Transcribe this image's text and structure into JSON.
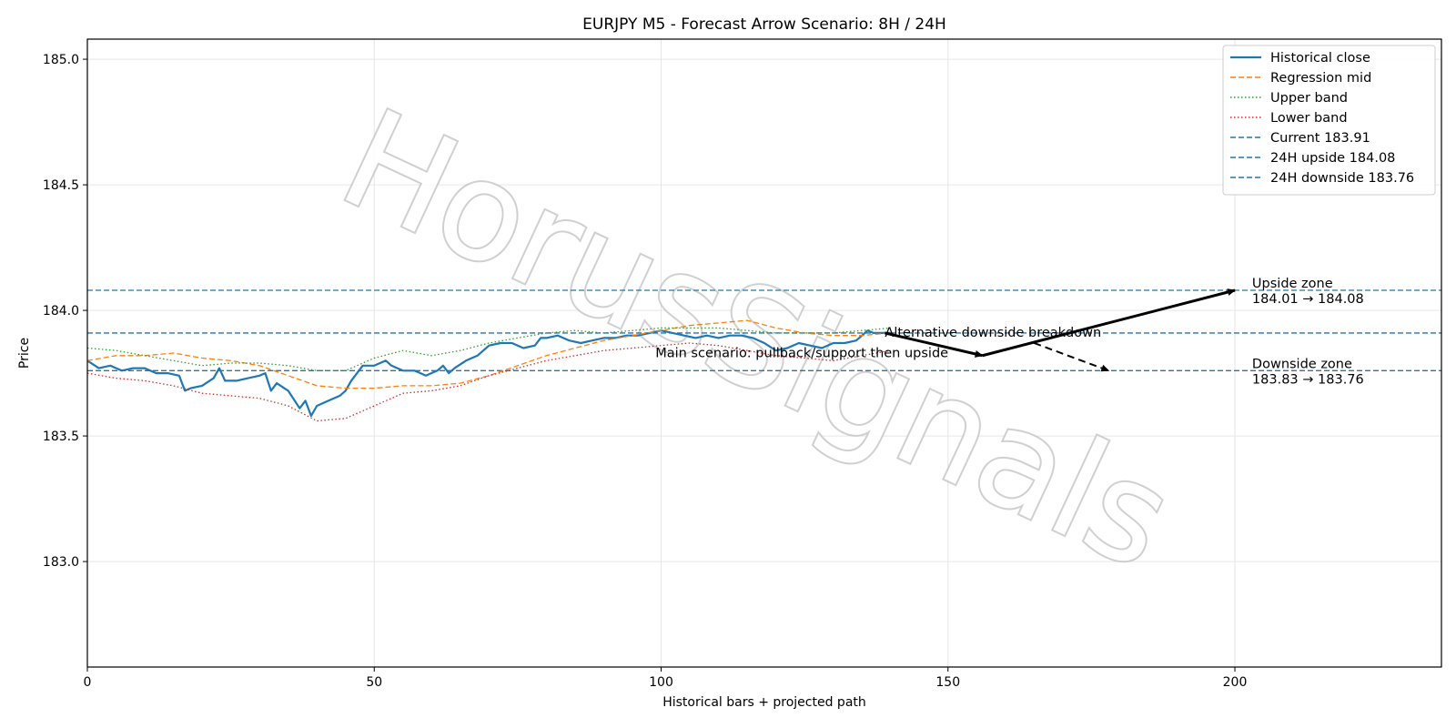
{
  "chart_data": {
    "type": "line",
    "title": "EURJPY M5 - Forecast Arrow Scenario: 8H / 24H",
    "xlabel": "Historical bars + projected path",
    "ylabel": "Price",
    "xlim": [
      0,
      236
    ],
    "ylim": [
      182.58,
      185.08
    ],
    "xticks": [
      0,
      50,
      100,
      150,
      200
    ],
    "yticks": [
      183.0,
      183.5,
      184.0,
      184.5,
      185.0
    ],
    "xtick_labels": [
      "0",
      "50",
      "100",
      "150",
      "200"
    ],
    "ytick_labels": [
      "183.0",
      "183.5",
      "184.0",
      "184.5",
      "185.0"
    ],
    "grid": true,
    "legend_position": "top-right",
    "watermark": "HorusSignals",
    "series": [
      {
        "name": "Historical close",
        "color": "#1f77b4",
        "style": "solid",
        "x": [
          0,
          2,
          4,
          6,
          8,
          10,
          12,
          14,
          16,
          17,
          18,
          20,
          22,
          23,
          24,
          26,
          28,
          30,
          31,
          32,
          33,
          35,
          37,
          38,
          39,
          40,
          42,
          44,
          45,
          46,
          47,
          48,
          50,
          52,
          53,
          55,
          57,
          59,
          61,
          62,
          63,
          64,
          66,
          68,
          70,
          72,
          74,
          76,
          78,
          79,
          80,
          82,
          84,
          86,
          88,
          90,
          92,
          94,
          96,
          98,
          100,
          102,
          104,
          106,
          108,
          110,
          112,
          114,
          116,
          118,
          120,
          122,
          124,
          126,
          128,
          130,
          132,
          134,
          136,
          137,
          138,
          140
        ],
        "y": [
          183.8,
          183.77,
          183.78,
          183.76,
          183.77,
          183.77,
          183.75,
          183.75,
          183.74,
          183.68,
          183.69,
          183.7,
          183.73,
          183.77,
          183.72,
          183.72,
          183.73,
          183.74,
          183.75,
          183.68,
          183.71,
          183.68,
          183.61,
          183.64,
          183.58,
          183.62,
          183.64,
          183.66,
          183.68,
          183.72,
          183.75,
          183.78,
          183.78,
          183.8,
          183.78,
          183.76,
          183.76,
          183.74,
          183.76,
          183.78,
          183.75,
          183.77,
          183.8,
          183.82,
          183.86,
          183.87,
          183.87,
          183.85,
          183.86,
          183.89,
          183.89,
          183.9,
          183.88,
          183.87,
          183.88,
          183.89,
          183.89,
          183.9,
          183.9,
          183.91,
          183.92,
          183.91,
          183.9,
          183.89,
          183.9,
          183.89,
          183.9,
          183.9,
          183.89,
          183.87,
          183.84,
          183.85,
          183.87,
          183.86,
          183.85,
          183.87,
          183.87,
          183.88,
          183.92,
          183.91,
          183.91,
          183.91
        ]
      },
      {
        "name": "Regression mid",
        "color": "#ff7f0e",
        "style": "dashed",
        "x": [
          0,
          5,
          10,
          15,
          20,
          25,
          30,
          35,
          40,
          45,
          50,
          55,
          60,
          65,
          70,
          75,
          80,
          85,
          90,
          95,
          100,
          105,
          110,
          115,
          120,
          125,
          130,
          135,
          140
        ],
        "y": [
          183.8,
          183.82,
          183.82,
          183.83,
          183.81,
          183.8,
          183.78,
          183.74,
          183.7,
          183.69,
          183.69,
          183.7,
          183.7,
          183.71,
          183.74,
          183.78,
          183.82,
          183.85,
          183.88,
          183.9,
          183.92,
          183.94,
          183.95,
          183.96,
          183.93,
          183.91,
          183.9,
          183.9,
          183.91
        ]
      },
      {
        "name": "Upper band",
        "color": "#2ca02c",
        "style": "dotted",
        "x": [
          0,
          5,
          10,
          15,
          20,
          25,
          30,
          35,
          40,
          45,
          50,
          55,
          60,
          65,
          70,
          75,
          80,
          85,
          90,
          95,
          100,
          105,
          110,
          115,
          120,
          125,
          130,
          135,
          140
        ],
        "y": [
          183.85,
          183.84,
          183.82,
          183.8,
          183.78,
          183.79,
          183.79,
          183.78,
          183.76,
          183.76,
          183.81,
          183.84,
          183.82,
          183.84,
          183.87,
          183.89,
          183.91,
          183.92,
          183.91,
          183.92,
          183.93,
          183.93,
          183.93,
          183.92,
          183.91,
          183.91,
          183.91,
          183.92,
          183.93
        ]
      },
      {
        "name": "Lower band",
        "color": "#d62728",
        "style": "dotted",
        "x": [
          0,
          5,
          10,
          15,
          20,
          25,
          30,
          35,
          40,
          45,
          50,
          55,
          60,
          65,
          70,
          75,
          80,
          85,
          90,
          95,
          100,
          105,
          110,
          115,
          120,
          125,
          130,
          135,
          140
        ],
        "y": [
          183.75,
          183.73,
          183.72,
          183.7,
          183.67,
          183.66,
          183.65,
          183.62,
          183.56,
          183.57,
          183.62,
          183.67,
          183.68,
          183.7,
          183.74,
          183.77,
          183.8,
          183.82,
          183.84,
          183.85,
          183.86,
          183.87,
          183.86,
          183.84,
          183.82,
          183.81,
          183.8,
          183.82,
          183.84
        ]
      }
    ],
    "hlines": [
      {
        "name": "Current 183.91",
        "y": 183.91,
        "color": "#1f77b4",
        "style": "dashed"
      },
      {
        "name": "24H upside 184.08",
        "y": 184.08,
        "color": "#1f77b4",
        "style": "dashed"
      },
      {
        "name": "24H downside 183.76",
        "y": 183.76,
        "color": "#1f77b4",
        "style": "dashed"
      }
    ],
    "arrows": [
      {
        "from": [
          139,
          183.91
        ],
        "to": [
          156,
          183.82
        ],
        "style": "solid"
      },
      {
        "from": [
          156,
          183.82
        ],
        "to": [
          200,
          184.08
        ],
        "style": "solid"
      },
      {
        "from": [
          165,
          183.87
        ],
        "to": [
          178,
          183.76
        ],
        "style": "dashed"
      }
    ],
    "annotations": [
      {
        "text": "Alternative downside breakdown",
        "x": 139,
        "y": 183.88
      },
      {
        "text": "Main scenario: pullback/support then upside",
        "x": 99,
        "y": 183.8
      },
      {
        "text": "Upside zone",
        "x": 203,
        "y": 184.08,
        "line": 1
      },
      {
        "text": "184.01 → 184.08",
        "x": 203,
        "y": 184.08,
        "line": 2
      },
      {
        "text": "Downside zone",
        "x": 203,
        "y": 183.76,
        "line": 1
      },
      {
        "text": "183.83 → 183.76",
        "x": 203,
        "y": 183.76,
        "line": 2
      }
    ]
  }
}
